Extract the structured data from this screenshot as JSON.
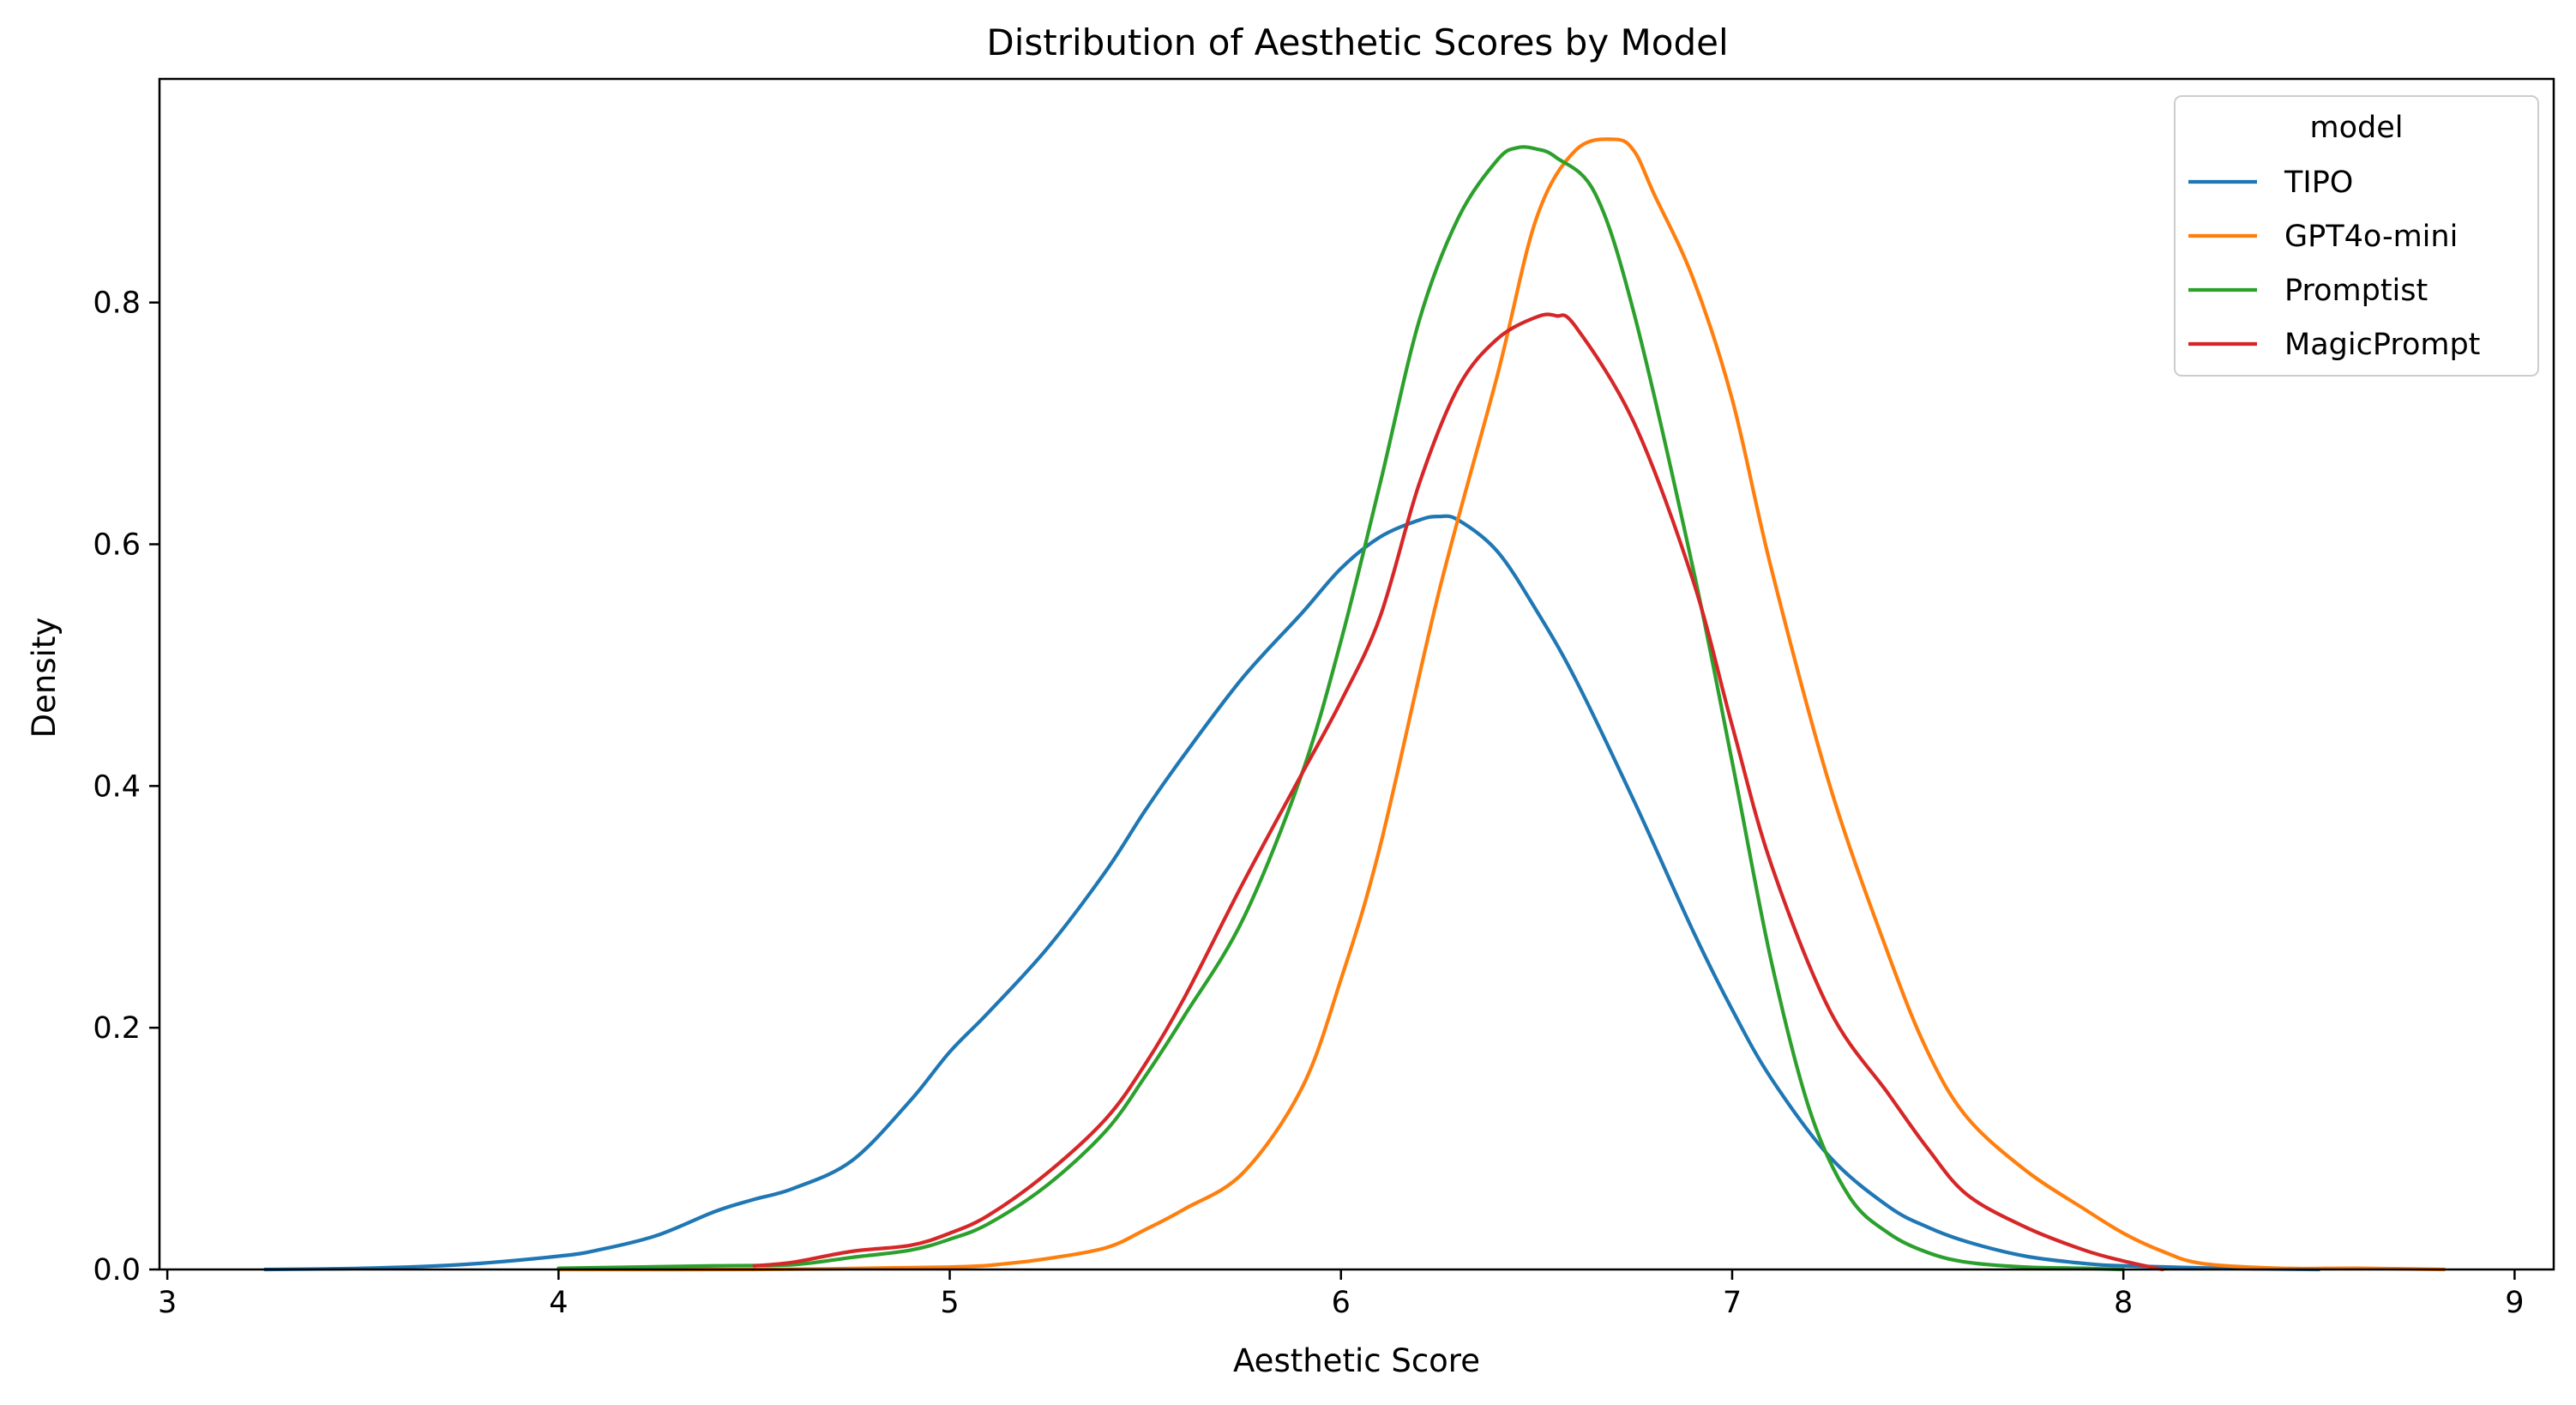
{
  "chart_data": {
    "type": "line",
    "title": "Distribution of Aesthetic Scores by Model",
    "xlabel": "Aesthetic Score",
    "ylabel": "Density",
    "xlim": [
      2.98,
      9.1
    ],
    "ylim": [
      0,
      0.985
    ],
    "xticks": [
      3,
      4,
      5,
      6,
      7,
      8,
      9
    ],
    "xtick_labels": [
      "3",
      "4",
      "5",
      "6",
      "7",
      "8",
      "9"
    ],
    "yticks": [
      0.0,
      0.2,
      0.4,
      0.6,
      0.8
    ],
    "ytick_labels": [
      "0.0",
      "0.2",
      "0.4",
      "0.6",
      "0.8"
    ],
    "grid": false,
    "legend": {
      "title": "model",
      "position": "top-right"
    },
    "series": [
      {
        "name": "TIPO",
        "color": "#1f77b4",
        "x": [
          3.25,
          3.5,
          3.75,
          4.0,
          4.1,
          4.25,
          4.4,
          4.5,
          4.6,
          4.75,
          4.9,
          5.0,
          5.1,
          5.25,
          5.4,
          5.5,
          5.6,
          5.75,
          5.9,
          6.0,
          6.1,
          6.2,
          6.25,
          6.3,
          6.4,
          6.5,
          6.6,
          6.75,
          6.9,
          7.0,
          7.1,
          7.25,
          7.4,
          7.5,
          7.6,
          7.75,
          7.9,
          8.0,
          8.25,
          8.5
        ],
        "y": [
          0.0,
          0.001,
          0.004,
          0.011,
          0.016,
          0.028,
          0.048,
          0.058,
          0.067,
          0.09,
          0.14,
          0.18,
          0.213,
          0.266,
          0.33,
          0.38,
          0.426,
          0.49,
          0.543,
          0.58,
          0.606,
          0.62,
          0.623,
          0.62,
          0.594,
          0.545,
          0.488,
          0.387,
          0.28,
          0.215,
          0.158,
          0.093,
          0.052,
          0.035,
          0.023,
          0.011,
          0.005,
          0.003,
          0.001,
          0.0
        ]
      },
      {
        "name": "GPT4o-mini",
        "color": "#ff7f0e",
        "x": [
          4.0,
          4.5,
          5.0,
          5.15,
          5.25,
          5.4,
          5.5,
          5.6,
          5.75,
          5.9,
          6.0,
          6.1,
          6.25,
          6.4,
          6.5,
          6.6,
          6.7,
          6.75,
          6.8,
          6.9,
          7.0,
          7.1,
          7.25,
          7.4,
          7.5,
          7.6,
          7.75,
          7.9,
          8.0,
          8.1,
          8.2,
          8.4,
          8.6,
          8.82
        ],
        "y": [
          0.0,
          0.0,
          0.002,
          0.005,
          0.009,
          0.018,
          0.033,
          0.05,
          0.08,
          0.15,
          0.24,
          0.35,
          0.56,
          0.74,
          0.87,
          0.926,
          0.935,
          0.925,
          0.89,
          0.82,
          0.72,
          0.58,
          0.4,
          0.26,
          0.18,
          0.126,
          0.082,
          0.05,
          0.03,
          0.015,
          0.005,
          0.001,
          0.001,
          0.0
        ]
      },
      {
        "name": "Promptist",
        "color": "#2ca02c",
        "x": [
          4.0,
          4.4,
          4.6,
          4.75,
          4.9,
          5.0,
          5.1,
          5.25,
          5.4,
          5.5,
          5.6,
          5.75,
          5.9,
          6.0,
          6.1,
          6.2,
          6.3,
          6.4,
          6.45,
          6.5,
          6.55,
          6.65,
          6.75,
          6.9,
          7.0,
          7.1,
          7.2,
          7.3,
          7.4,
          7.5,
          7.6,
          7.75,
          7.9,
          8.0
        ],
        "y": [
          0.001,
          0.003,
          0.004,
          0.01,
          0.016,
          0.025,
          0.038,
          0.07,
          0.115,
          0.16,
          0.21,
          0.29,
          0.41,
          0.52,
          0.65,
          0.785,
          0.87,
          0.918,
          0.928,
          0.927,
          0.92,
          0.89,
          0.79,
          0.58,
          0.42,
          0.255,
          0.13,
          0.06,
          0.03,
          0.014,
          0.006,
          0.002,
          0.001,
          0.0
        ]
      },
      {
        "name": "MagicPrompt",
        "color": "#d62728",
        "x": [
          4.5,
          4.6,
          4.75,
          4.9,
          5.0,
          5.1,
          5.25,
          5.4,
          5.5,
          5.6,
          5.75,
          5.9,
          6.0,
          6.1,
          6.2,
          6.3,
          6.4,
          6.5,
          6.55,
          6.6,
          6.75,
          6.9,
          7.0,
          7.1,
          7.25,
          7.4,
          7.5,
          7.6,
          7.75,
          7.9,
          8.0,
          8.1
        ],
        "y": [
          0.003,
          0.006,
          0.015,
          0.02,
          0.03,
          0.045,
          0.08,
          0.125,
          0.17,
          0.225,
          0.32,
          0.41,
          0.47,
          0.54,
          0.65,
          0.73,
          0.77,
          0.788,
          0.789,
          0.78,
          0.7,
          0.57,
          0.45,
          0.335,
          0.214,
          0.145,
          0.1,
          0.062,
          0.035,
          0.016,
          0.007,
          0.0
        ]
      }
    ]
  }
}
